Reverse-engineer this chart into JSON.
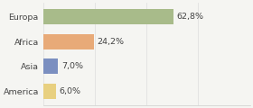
{
  "categories": [
    "Europa",
    "Africa",
    "Asia",
    "America"
  ],
  "values": [
    62.8,
    24.2,
    7.0,
    6.0
  ],
  "labels": [
    "62,8%",
    "24,2%",
    "7,0%",
    "6,0%"
  ],
  "bar_colors": [
    "#a8bb8a",
    "#e8aa78",
    "#7b8fc0",
    "#e8d080"
  ],
  "background_color": "#f5f5f2",
  "xlim": [
    0,
    100
  ],
  "bar_height": 0.62,
  "label_fontsize": 6.8,
  "category_fontsize": 6.8,
  "label_offsets": [
    1.5,
    1.5,
    1.5,
    1.5
  ]
}
